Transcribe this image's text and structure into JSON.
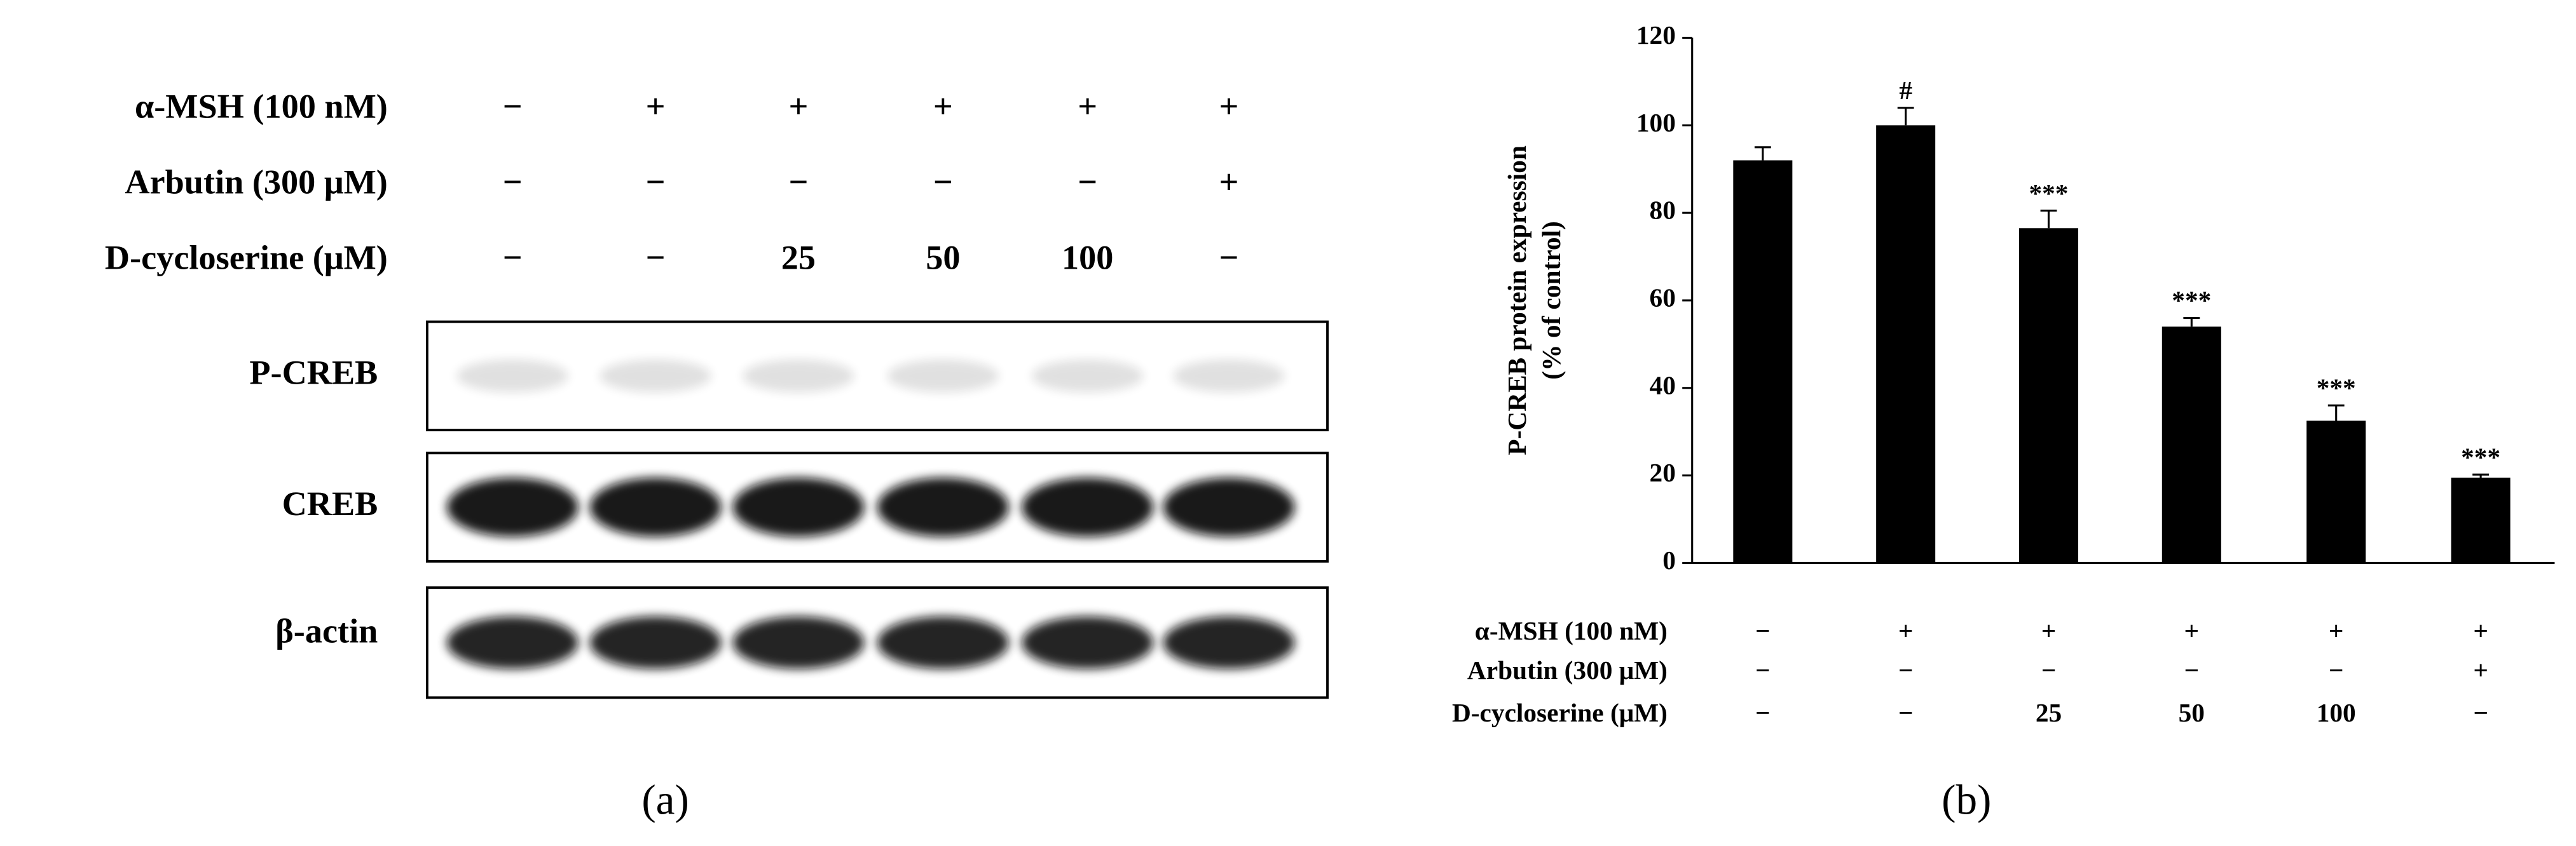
{
  "panel_a": {
    "label": "(a)",
    "treatments": [
      {
        "label": "α-MSH (100 nM)",
        "values": [
          "−",
          "+",
          "+",
          "+",
          "+",
          "+"
        ]
      },
      {
        "label": "Arbutin (300 μM)",
        "values": [
          "−",
          "−",
          "−",
          "−",
          "−",
          "+"
        ]
      },
      {
        "label": "D-cycloserine (μM)",
        "values": [
          "−",
          "−",
          "25",
          "50",
          "100",
          "−"
        ]
      }
    ],
    "blots": [
      "P-CREB",
      "CREB",
      "β-actin"
    ]
  },
  "chart_data": {
    "type": "bar",
    "panel_label": "(b)",
    "ylabel": [
      "P-CREB protein expression",
      "(% of control)"
    ],
    "values": [
      92,
      100,
      76.5,
      54,
      32.5,
      19.5
    ],
    "errors": [
      3,
      4,
      4,
      2,
      3.5,
      0.7
    ],
    "annotations": [
      null,
      "#",
      "***",
      "***",
      "***",
      "***"
    ],
    "color": "#000000",
    "ylim": [
      0,
      120
    ],
    "yticks": [
      0,
      20,
      40,
      60,
      80,
      100,
      120
    ],
    "treatments": [
      {
        "label": "α-MSH (100 nM)",
        "values": [
          "−",
          "+",
          "+",
          "+",
          "+",
          "+"
        ]
      },
      {
        "label": "Arbutin (300 μM)",
        "values": [
          "−",
          "−",
          "−",
          "−",
          "−",
          "+"
        ]
      },
      {
        "label": "D-cycloserine (μM)",
        "values": [
          "−",
          "−",
          "25",
          "50",
          "100",
          "−"
        ]
      }
    ]
  }
}
